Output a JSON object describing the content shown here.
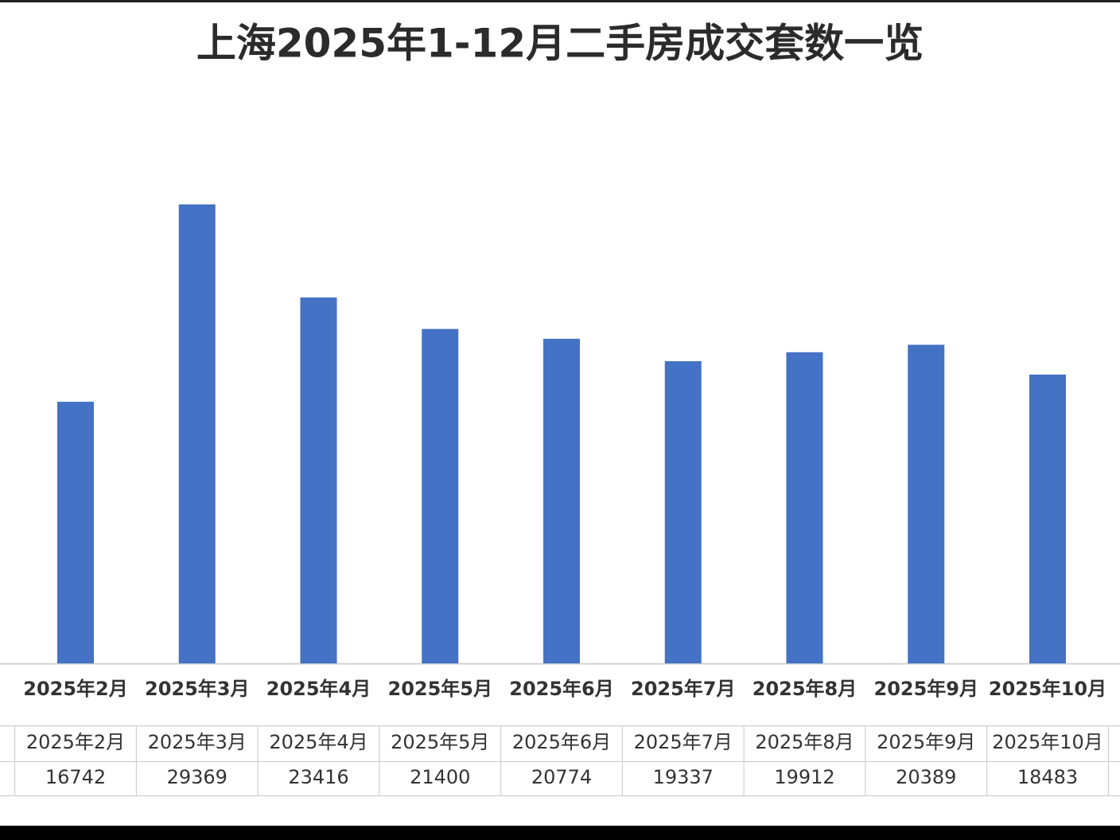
{
  "chart_data": {
    "type": "bar",
    "title": "上海2025年1-12月二手房成交套数一览",
    "categories": [
      "2025年2月",
      "2025年3月",
      "2025年4月",
      "2025年5月",
      "2025年6月",
      "2025年7月",
      "2025年8月",
      "2025年9月",
      "2025年10月"
    ],
    "values": [
      16742,
      29369,
      23416,
      21400,
      20774,
      19337,
      19912,
      20389,
      18483
    ],
    "color": "#4472c4"
  }
}
